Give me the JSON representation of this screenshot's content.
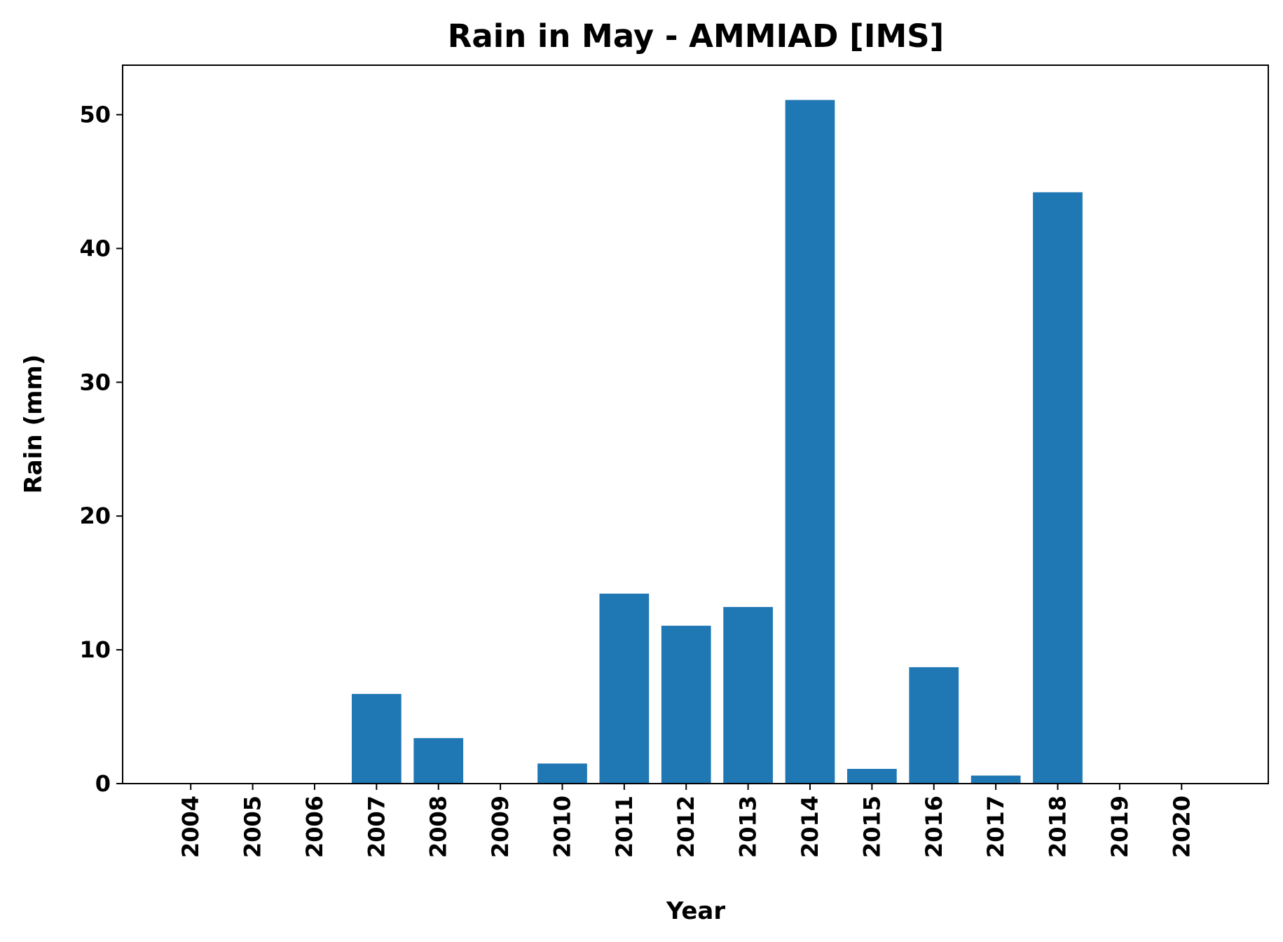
{
  "chart_data": {
    "type": "bar",
    "title": "Rain in May - AMMIAD [IMS]",
    "xlabel": "Year",
    "ylabel": "Rain (mm)",
    "categories": [
      "2004",
      "2005",
      "2006",
      "2007",
      "2008",
      "2009",
      "2010",
      "2011",
      "2012",
      "2013",
      "2014",
      "2015",
      "2016",
      "2017",
      "2018",
      "2019",
      "2020"
    ],
    "values": [
      0,
      0,
      0,
      6.7,
      3.4,
      0,
      1.5,
      14.2,
      11.8,
      13.2,
      51.1,
      1.1,
      8.7,
      0.6,
      44.2,
      0,
      0
    ],
    "ylim": [
      0,
      53.7
    ],
    "yticks": [
      0,
      10,
      20,
      30,
      40,
      50
    ],
    "xlim": [
      2002.9,
      2021.4
    ],
    "bar_color": "#1f77b4",
    "grid": false,
    "legend": "none"
  }
}
